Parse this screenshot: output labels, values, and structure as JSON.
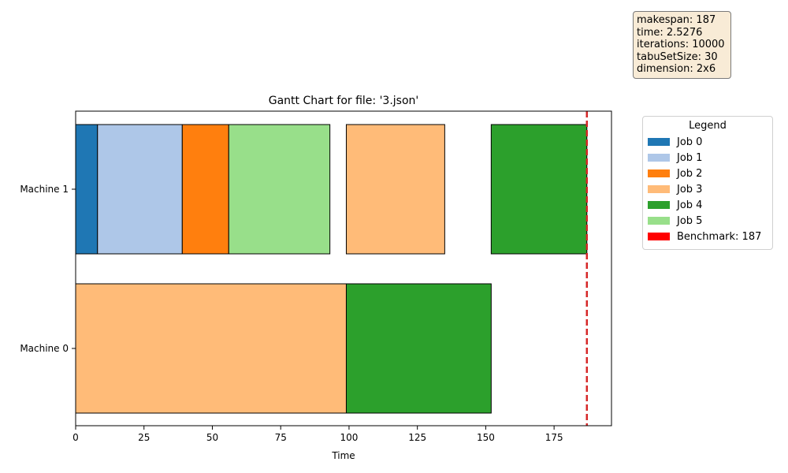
{
  "chart_data": {
    "type": "gantt",
    "title": "Gantt Chart for file: '3.json'",
    "xlabel": "Time",
    "ylabel": "",
    "xlim": [
      0,
      196
    ],
    "xticks": [
      0,
      25,
      50,
      75,
      100,
      125,
      150,
      175
    ],
    "machines": [
      "Machine 0",
      "Machine 1"
    ],
    "tasks": [
      {
        "machine": "Machine 1",
        "job": "Job 0",
        "start": 0,
        "end": 8
      },
      {
        "machine": "Machine 1",
        "job": "Job 1",
        "start": 8,
        "end": 39
      },
      {
        "machine": "Machine 1",
        "job": "Job 2",
        "start": 39,
        "end": 56
      },
      {
        "machine": "Machine 1",
        "job": "Job 5",
        "start": 56,
        "end": 93
      },
      {
        "machine": "Machine 1",
        "job": "Job 3",
        "start": 99,
        "end": 135
      },
      {
        "machine": "Machine 1",
        "job": "Job 4",
        "start": 152,
        "end": 187
      },
      {
        "machine": "Machine 0",
        "job": "Job 3",
        "start": 0,
        "end": 99
      },
      {
        "machine": "Machine 0",
        "job": "Job 4",
        "start": 99,
        "end": 152
      }
    ],
    "benchmark": {
      "value": 187,
      "color": "#d62728"
    },
    "legend": {
      "title": "Legend",
      "placement": "outside-right",
      "entries": [
        {
          "label": "Job 0",
          "color": "#1f77b4"
        },
        {
          "label": "Job 1",
          "color": "#aec7e8"
        },
        {
          "label": "Job 2",
          "color": "#ff7f0e"
        },
        {
          "label": "Job 3",
          "color": "#ffbb78"
        },
        {
          "label": "Job 4",
          "color": "#2ca02c"
        },
        {
          "label": "Job 5",
          "color": "#98df8a"
        },
        {
          "label": "Benchmark: 187",
          "color": "#ff0000"
        }
      ]
    },
    "info": [
      "makespan: 187",
      "time: 2.5276",
      "iterations: 10000",
      "tabuSetSize: 30",
      "dimension: 2x6"
    ]
  }
}
